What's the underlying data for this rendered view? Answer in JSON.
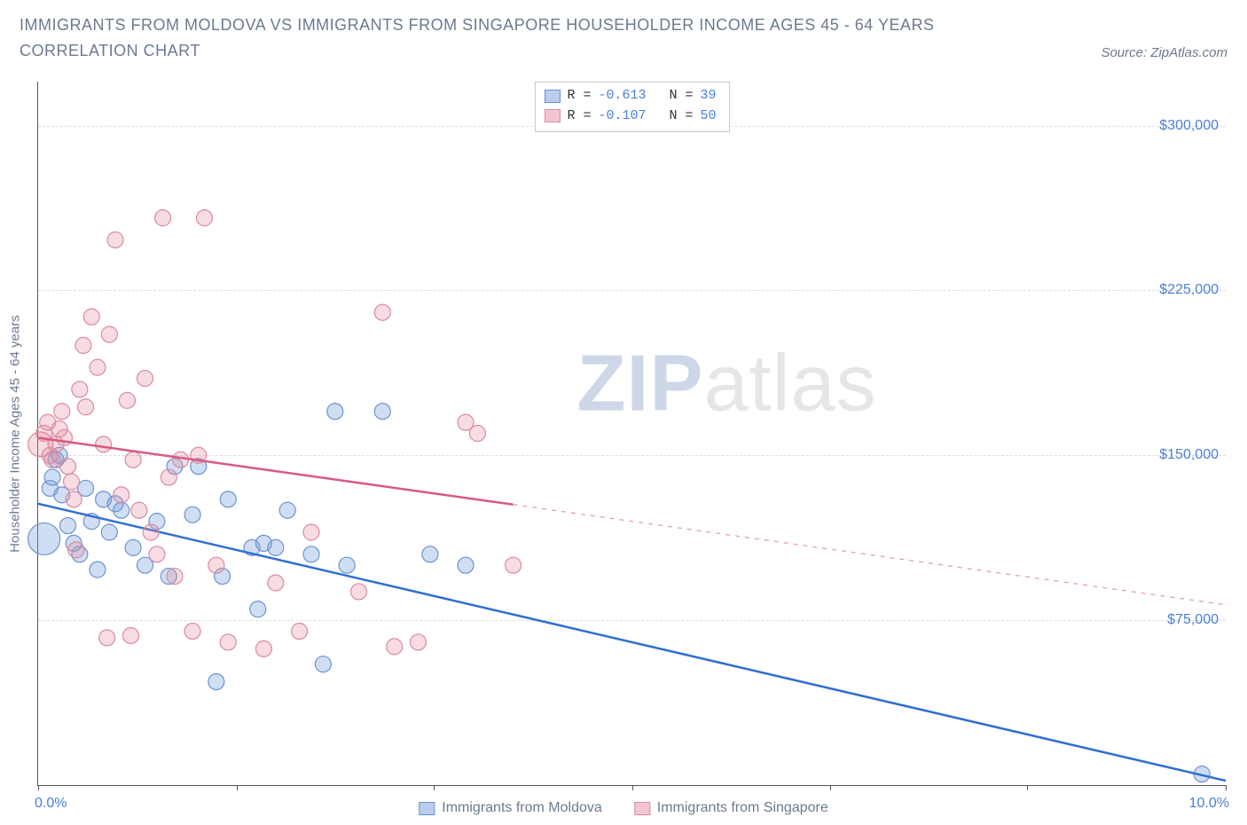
{
  "header": {
    "title": "IMMIGRANTS FROM MOLDOVA VS IMMIGRANTS FROM SINGAPORE HOUSEHOLDER INCOME AGES 45 - 64 YEARS CORRELATION CHART",
    "source": "Source: ZipAtlas.com"
  },
  "watermark": {
    "part1": "ZIP",
    "part2": "atlas"
  },
  "chart": {
    "type": "scatter",
    "xlim": [
      0,
      10
    ],
    "ylim": [
      0,
      320000
    ],
    "y_axis_title": "Householder Income Ages 45 - 64 years",
    "x_left_label": "0.0%",
    "x_right_label": "10.0%",
    "y_ticks": [
      {
        "v": 75000,
        "label": "$75,000"
      },
      {
        "v": 150000,
        "label": "$150,000"
      },
      {
        "v": 225000,
        "label": "$225,000"
      },
      {
        "v": 300000,
        "label": "$300,000"
      }
    ],
    "x_ticks_pct": [
      0,
      16.7,
      33.3,
      50,
      66.7,
      83.3,
      100
    ],
    "grid_color": "#d8dde6",
    "background_color": "#ffffff",
    "series": [
      {
        "name": "Immigrants from Moldova",
        "color_fill": "rgba(120,160,220,0.35)",
        "color_stroke": "#6a93d0",
        "line_color": "#2f6fd0",
        "swatch_fill": "#b9cdef",
        "swatch_border": "#6a93d0",
        "R": "-0.613",
        "N": "39",
        "regression": {
          "x1": 0,
          "y1": 128000,
          "x2": 10,
          "y2": 2000,
          "solid_until_x": 10
        },
        "marker_r": 9,
        "points": [
          {
            "x": 0.05,
            "y": 112000,
            "r": 18
          },
          {
            "x": 0.1,
            "y": 135000
          },
          {
            "x": 0.12,
            "y": 140000
          },
          {
            "x": 0.15,
            "y": 148000
          },
          {
            "x": 0.18,
            "y": 150000
          },
          {
            "x": 0.2,
            "y": 132000
          },
          {
            "x": 0.25,
            "y": 118000
          },
          {
            "x": 0.3,
            "y": 110000
          },
          {
            "x": 0.35,
            "y": 105000
          },
          {
            "x": 0.4,
            "y": 135000
          },
          {
            "x": 0.45,
            "y": 120000
          },
          {
            "x": 0.5,
            "y": 98000
          },
          {
            "x": 0.55,
            "y": 130000
          },
          {
            "x": 0.6,
            "y": 115000
          },
          {
            "x": 0.65,
            "y": 128000
          },
          {
            "x": 0.7,
            "y": 125000
          },
          {
            "x": 0.8,
            "y": 108000
          },
          {
            "x": 0.9,
            "y": 100000
          },
          {
            "x": 1.0,
            "y": 120000
          },
          {
            "x": 1.1,
            "y": 95000
          },
          {
            "x": 1.15,
            "y": 145000
          },
          {
            "x": 1.3,
            "y": 123000
          },
          {
            "x": 1.35,
            "y": 145000
          },
          {
            "x": 1.5,
            "y": 47000
          },
          {
            "x": 1.55,
            "y": 95000
          },
          {
            "x": 1.6,
            "y": 130000
          },
          {
            "x": 1.8,
            "y": 108000
          },
          {
            "x": 1.85,
            "y": 80000
          },
          {
            "x": 1.9,
            "y": 110000
          },
          {
            "x": 2.0,
            "y": 108000
          },
          {
            "x": 2.1,
            "y": 125000
          },
          {
            "x": 2.3,
            "y": 105000
          },
          {
            "x": 2.4,
            "y": 55000
          },
          {
            "x": 2.5,
            "y": 170000
          },
          {
            "x": 2.6,
            "y": 100000
          },
          {
            "x": 2.9,
            "y": 170000
          },
          {
            "x": 3.3,
            "y": 105000
          },
          {
            "x": 3.6,
            "y": 100000
          },
          {
            "x": 9.8,
            "y": 5000
          }
        ]
      },
      {
        "name": "Immigrants from Singapore",
        "color_fill": "rgba(230,140,160,0.30)",
        "color_stroke": "#d98aa0",
        "line_color": "#d85a80",
        "swatch_fill": "#f3c5d0",
        "swatch_border": "#d98aa0",
        "R": "-0.107",
        "N": "50",
        "regression": {
          "x1": 0,
          "y1": 158000,
          "x2": 10,
          "y2": 82000,
          "solid_until_x": 4.0
        },
        "marker_r": 9,
        "points": [
          {
            "x": 0.02,
            "y": 155000,
            "r": 14
          },
          {
            "x": 0.05,
            "y": 160000
          },
          {
            "x": 0.08,
            "y": 165000
          },
          {
            "x": 0.1,
            "y": 150000
          },
          {
            "x": 0.12,
            "y": 148000
          },
          {
            "x": 0.15,
            "y": 155000
          },
          {
            "x": 0.18,
            "y": 162000
          },
          {
            "x": 0.2,
            "y": 170000
          },
          {
            "x": 0.22,
            "y": 158000
          },
          {
            "x": 0.25,
            "y": 145000
          },
          {
            "x": 0.28,
            "y": 138000
          },
          {
            "x": 0.3,
            "y": 130000
          },
          {
            "x": 0.32,
            "y": 107000
          },
          {
            "x": 0.35,
            "y": 180000
          },
          {
            "x": 0.38,
            "y": 200000
          },
          {
            "x": 0.4,
            "y": 172000
          },
          {
            "x": 0.45,
            "y": 213000
          },
          {
            "x": 0.5,
            "y": 190000
          },
          {
            "x": 0.55,
            "y": 155000
          },
          {
            "x": 0.58,
            "y": 67000
          },
          {
            "x": 0.6,
            "y": 205000
          },
          {
            "x": 0.65,
            "y": 248000
          },
          {
            "x": 0.7,
            "y": 132000
          },
          {
            "x": 0.75,
            "y": 175000
          },
          {
            "x": 0.78,
            "y": 68000
          },
          {
            "x": 0.8,
            "y": 148000
          },
          {
            "x": 0.85,
            "y": 125000
          },
          {
            "x": 0.9,
            "y": 185000
          },
          {
            "x": 0.95,
            "y": 115000
          },
          {
            "x": 1.0,
            "y": 105000
          },
          {
            "x": 1.05,
            "y": 258000
          },
          {
            "x": 1.1,
            "y": 140000
          },
          {
            "x": 1.15,
            "y": 95000
          },
          {
            "x": 1.2,
            "y": 148000
          },
          {
            "x": 1.3,
            "y": 70000
          },
          {
            "x": 1.35,
            "y": 150000
          },
          {
            "x": 1.4,
            "y": 258000
          },
          {
            "x": 1.5,
            "y": 100000
          },
          {
            "x": 1.6,
            "y": 65000
          },
          {
            "x": 1.9,
            "y": 62000
          },
          {
            "x": 2.0,
            "y": 92000
          },
          {
            "x": 2.2,
            "y": 70000
          },
          {
            "x": 2.3,
            "y": 115000
          },
          {
            "x": 2.7,
            "y": 88000
          },
          {
            "x": 2.9,
            "y": 215000
          },
          {
            "x": 3.0,
            "y": 63000
          },
          {
            "x": 3.2,
            "y": 65000
          },
          {
            "x": 3.6,
            "y": 165000
          },
          {
            "x": 3.7,
            "y": 160000
          },
          {
            "x": 4.0,
            "y": 100000
          }
        ]
      }
    ]
  },
  "legend_bottom": {
    "items": [
      {
        "label": "Immigrants from Moldova",
        "swatch_fill": "#b9cdef",
        "swatch_border": "#6a93d0"
      },
      {
        "label": "Immigrants from Singapore",
        "swatch_fill": "#f3c5d0",
        "swatch_border": "#d98aa0"
      }
    ]
  }
}
